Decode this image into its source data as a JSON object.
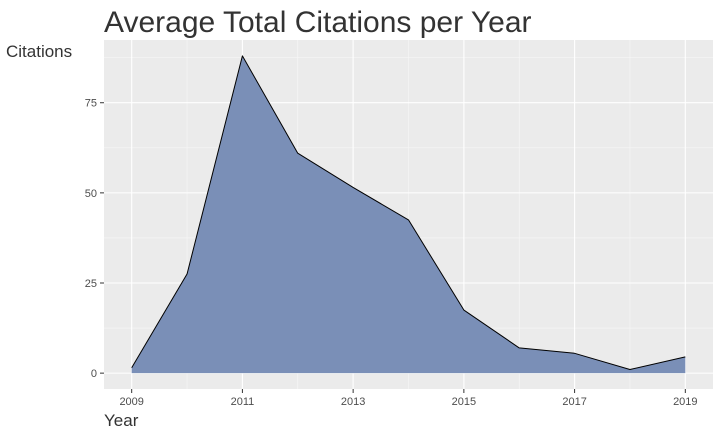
{
  "chart_data": {
    "type": "area",
    "title": "Average Total Citations per Year",
    "xlabel": "Year",
    "ylabel": "Citations",
    "x": [
      2009,
      2010,
      2011,
      2012,
      2013,
      2014,
      2015,
      2016,
      2017,
      2018,
      2019
    ],
    "y": [
      1.5,
      27.5,
      88.0,
      61.0,
      51.5,
      42.5,
      17.5,
      7.0,
      5.5,
      1.0,
      4.5
    ],
    "xlim": [
      2008.5,
      2019.5
    ],
    "ylim": [
      -4.4,
      92.4
    ],
    "x_ticks": [
      2009,
      2011,
      2013,
      2015,
      2017,
      2019
    ],
    "y_ticks": [
      0,
      25,
      50,
      75
    ],
    "grid": true,
    "legend": "none",
    "colors": {
      "area_fill": "#7a8fb7",
      "area_line": "#000000",
      "panel_background": "#ebebeb",
      "grid_line": "#ffffff"
    }
  }
}
